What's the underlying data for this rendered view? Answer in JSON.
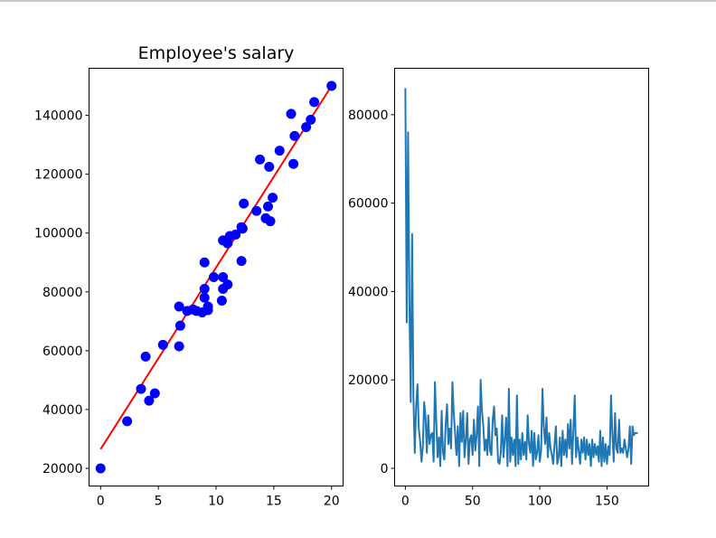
{
  "chart_data": [
    {
      "type": "scatter",
      "title": "Employee's salary",
      "xlabel": "",
      "ylabel": "",
      "xlim": [
        -1,
        21
      ],
      "ylim": [
        14000,
        156000
      ],
      "x_ticks": [
        0,
        5,
        10,
        15,
        20
      ],
      "x_tick_labels": [
        "0",
        "5",
        "10",
        "15",
        "20"
      ],
      "y_ticks": [
        20000,
        40000,
        60000,
        80000,
        100000,
        120000,
        140000
      ],
      "y_tick_labels": [
        "20000",
        "40000",
        "60000",
        "80000",
        "100000",
        "120000",
        "140000"
      ],
      "scatter_color": "#0000ff",
      "line_color": "#ff0000",
      "points": [
        [
          0,
          20000
        ],
        [
          2.3,
          36000
        ],
        [
          3.5,
          47000
        ],
        [
          3.9,
          58000
        ],
        [
          4.2,
          43000
        ],
        [
          4.7,
          45500
        ],
        [
          5.4,
          62000
        ],
        [
          6.8,
          61500
        ],
        [
          6.8,
          75000
        ],
        [
          6.9,
          68500
        ],
        [
          7.5,
          73500
        ],
        [
          8.0,
          74000
        ],
        [
          8.3,
          73500
        ],
        [
          8.8,
          73000
        ],
        [
          9.0,
          81000
        ],
        [
          9.0,
          78000
        ],
        [
          9.0,
          90000
        ],
        [
          9.3,
          75000
        ],
        [
          9.3,
          73800
        ],
        [
          9.8,
          85000
        ],
        [
          10.5,
          77000
        ],
        [
          10.6,
          81000
        ],
        [
          10.6,
          85000
        ],
        [
          10.6,
          97500
        ],
        [
          11.0,
          82500
        ],
        [
          11.0,
          96500
        ],
        [
          11.2,
          99000
        ],
        [
          11.7,
          99500
        ],
        [
          12.2,
          102000
        ],
        [
          12.2,
          90500
        ],
        [
          12.3,
          101500
        ],
        [
          12.4,
          110000
        ],
        [
          13.5,
          107500
        ],
        [
          13.8,
          125000
        ],
        [
          14.3,
          105000
        ],
        [
          14.5,
          109000
        ],
        [
          14.6,
          122500
        ],
        [
          14.7,
          104000
        ],
        [
          14.9,
          112000
        ],
        [
          15.5,
          128000
        ],
        [
          16.5,
          140500
        ],
        [
          16.7,
          123500
        ],
        [
          16.8,
          133000
        ],
        [
          17.8,
          136000
        ],
        [
          18.2,
          138500
        ],
        [
          18.5,
          144500
        ],
        [
          20.0,
          150000
        ]
      ],
      "fit_line": {
        "intercept": 26500,
        "slope": 6175,
        "x_range": [
          0,
          20
        ]
      }
    },
    {
      "type": "line",
      "title": "",
      "xlabel": "",
      "ylabel": "",
      "xlim": [
        -8,
        181
      ],
      "ylim": [
        -4000,
        90500
      ],
      "x_ticks": [
        0,
        50,
        100,
        150
      ],
      "x_tick_labels": [
        "0",
        "50",
        "100",
        "150"
      ],
      "y_ticks": [
        0,
        20000,
        40000,
        60000,
        80000
      ],
      "y_tick_labels": [
        "0",
        "20000",
        "40000",
        "60000",
        "80000"
      ],
      "line_color": "#1f77b4",
      "series": [
        {
          "name": "values",
          "values": [
            86000,
            33000,
            76000,
            38000,
            15000,
            53000,
            16000,
            3500,
            14000,
            19000,
            9000,
            6000,
            1500,
            5000,
            15000,
            11500,
            3500,
            12000,
            5500,
            7500,
            8000,
            1500,
            19500,
            10500,
            2500,
            7000,
            500,
            13000,
            3500,
            2000,
            10000,
            14500,
            5500,
            9000,
            4500,
            19500,
            12500,
            8000,
            3000,
            9500,
            500,
            12500,
            6000,
            13000,
            2500,
            6500,
            12500,
            1000,
            6500,
            7500,
            3000,
            11000,
            4000,
            7500,
            14000,
            500,
            20000,
            13000,
            9500,
            4000,
            6500,
            3000,
            11500,
            4000,
            3000,
            11000,
            14000,
            7500,
            9000,
            1500,
            1000,
            3500,
            12000,
            2500,
            6500,
            11500,
            500,
            18000,
            1500,
            7000,
            3000,
            6500,
            500,
            16500,
            1000,
            6500,
            2000,
            8000,
            3000,
            6000,
            2000,
            12000,
            5500,
            3500,
            8500,
            500,
            8000,
            2000,
            3500,
            7500,
            1500,
            4000,
            18000,
            9500,
            5500,
            11500,
            2500,
            8000,
            4500,
            3000,
            1000,
            5500,
            9500,
            1000,
            2500,
            7000,
            500,
            8500,
            3000,
            6500,
            2500,
            10000,
            4500,
            11000,
            1000,
            8500,
            16500,
            2500,
            7000,
            4000,
            1000,
            6500,
            3500,
            7000,
            2000,
            6500,
            3000,
            5500,
            500,
            6500,
            2500,
            5500,
            3000,
            5000,
            1500,
            8500,
            500,
            7000,
            1500,
            5500,
            1000,
            5000,
            3000,
            16500,
            8000,
            1500,
            12500,
            4500,
            3500,
            11000,
            3500,
            4500,
            3500,
            6500,
            4500,
            2500,
            4500,
            9500,
            1000,
            9500,
            7500,
            8000,
            8000,
            8000
          ]
        }
      ]
    }
  ]
}
